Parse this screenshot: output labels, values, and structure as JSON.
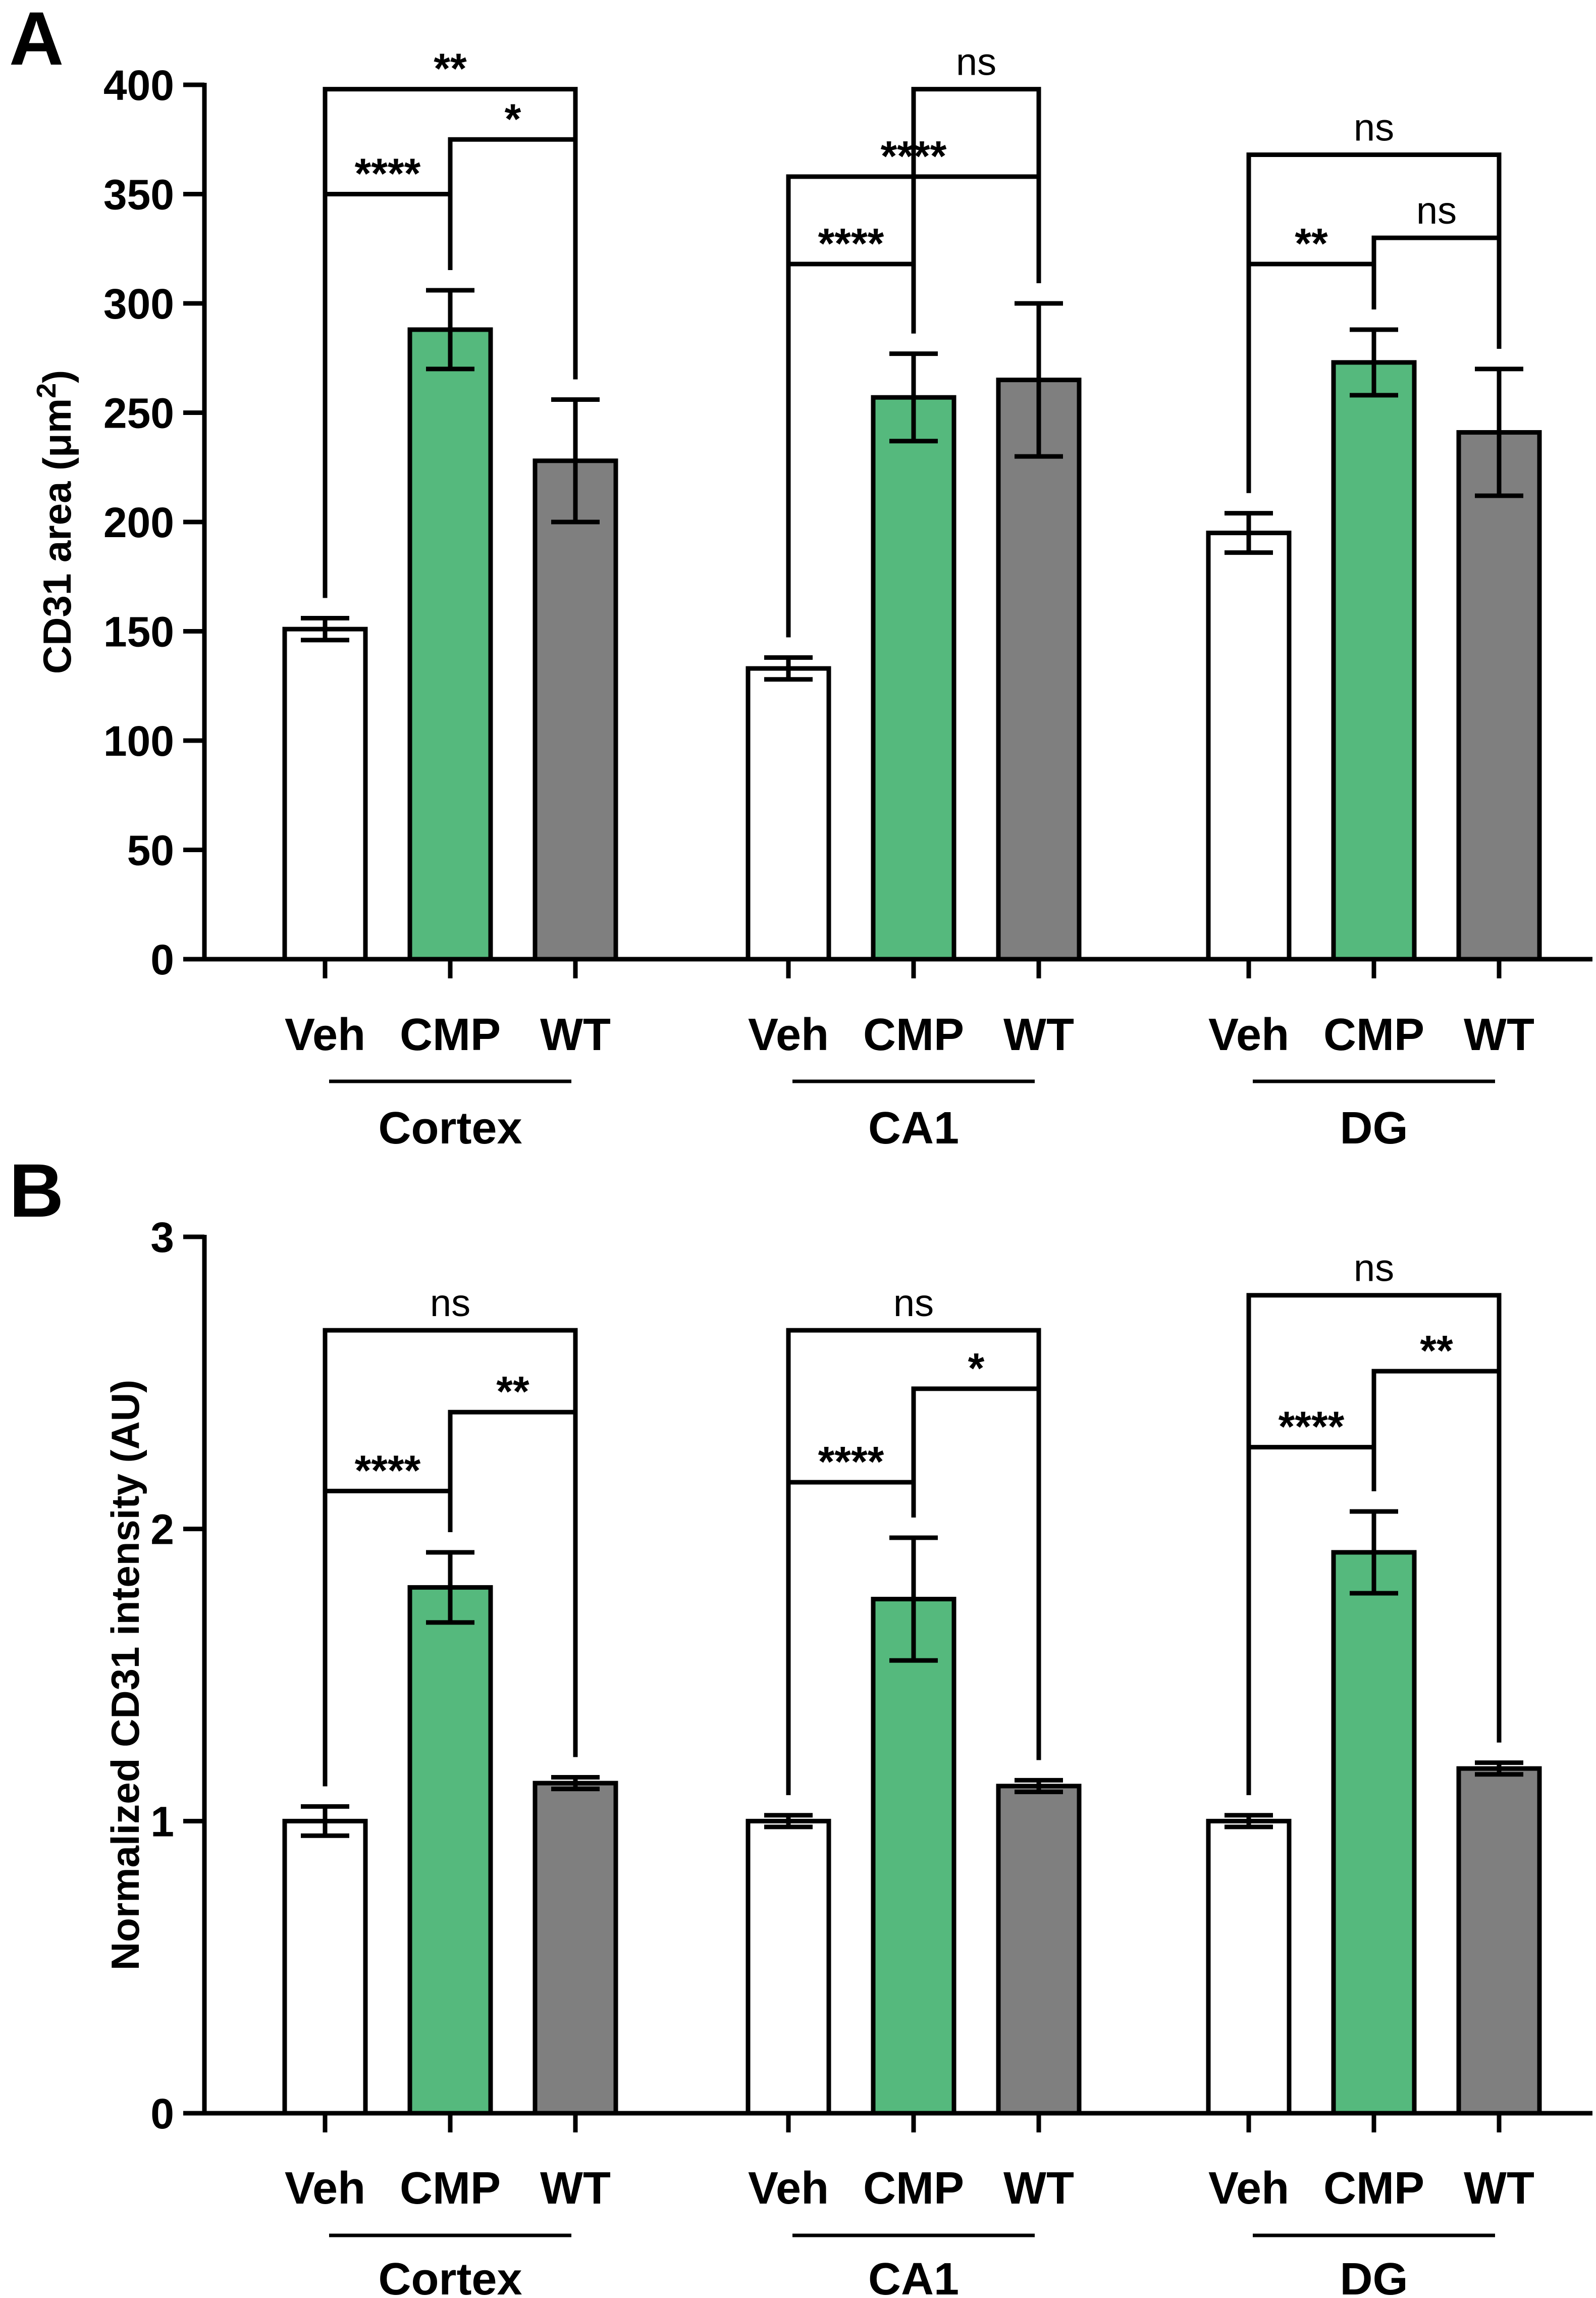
{
  "chart_data": [
    {
      "panel": "A",
      "type": "bar",
      "ylabel": "CD31 area (μm²)",
      "ylabel_base": "CD31 area (μm",
      "ylabel_sup": "2",
      "ylabel_close": ")",
      "ylim": [
        0,
        400
      ],
      "yticks": [
        "0",
        "50",
        "100",
        "150",
        "200",
        "250",
        "300",
        "350",
        "400"
      ],
      "groups": [
        "Cortex",
        "CA1",
        "DG"
      ],
      "categories": [
        "Veh",
        "CMP",
        "WT"
      ],
      "series": [
        {
          "name": "Veh",
          "color": "#ffffff",
          "values": [
            151,
            133,
            195
          ],
          "errors": [
            5,
            5,
            9
          ]
        },
        {
          "name": "CMP",
          "color": "#55b97d",
          "values": [
            288,
            257,
            273
          ],
          "errors": [
            18,
            20,
            15
          ]
        },
        {
          "name": "WT",
          "color": "#7f7f7f",
          "values": [
            228,
            265,
            241
          ],
          "errors": [
            28,
            35,
            29
          ]
        }
      ],
      "significance": [
        {
          "group": 0,
          "from": 0,
          "to": 1,
          "label": "****",
          "y": 350
        },
        {
          "group": 0,
          "from": 1,
          "to": 2,
          "label": "*",
          "y": 375
        },
        {
          "group": 0,
          "from": 0,
          "to": 2,
          "label": "**",
          "y": 398
        },
        {
          "group": 1,
          "from": 0,
          "to": 1,
          "label": "****",
          "y": 318
        },
        {
          "group": 1,
          "from": 0,
          "to": 2,
          "label": "****",
          "y": 358
        },
        {
          "group": 1,
          "from": 1,
          "to": 2,
          "label": "ns",
          "y": 398
        },
        {
          "group": 2,
          "from": 0,
          "to": 1,
          "label": "**",
          "y": 318
        },
        {
          "group": 2,
          "from": 1,
          "to": 2,
          "label": "ns",
          "y": 330
        },
        {
          "group": 2,
          "from": 0,
          "to": 2,
          "label": "ns",
          "y": 368
        }
      ]
    },
    {
      "panel": "B",
      "type": "bar",
      "ylabel": "Normalized CD31 intensity (AU)",
      "ylim": [
        0,
        3
      ],
      "yticks": [
        "0",
        "1",
        "2",
        "3"
      ],
      "groups": [
        "Cortex",
        "CA1",
        "DG"
      ],
      "categories": [
        "Veh",
        "CMP",
        "WT"
      ],
      "series": [
        {
          "name": "Veh",
          "color": "#ffffff",
          "values": [
            1.0,
            1.0,
            1.0
          ],
          "errors": [
            0.05,
            0.02,
            0.02
          ]
        },
        {
          "name": "CMP",
          "color": "#55b97d",
          "values": [
            1.8,
            1.76,
            1.92
          ],
          "errors": [
            0.12,
            0.21,
            0.14
          ]
        },
        {
          "name": "WT",
          "color": "#7f7f7f",
          "values": [
            1.13,
            1.12,
            1.18
          ],
          "errors": [
            0.02,
            0.02,
            0.02
          ]
        }
      ],
      "significance": [
        {
          "group": 0,
          "from": 0,
          "to": 1,
          "label": "****",
          "y": 2.13
        },
        {
          "group": 0,
          "from": 1,
          "to": 2,
          "label": "**",
          "y": 2.4
        },
        {
          "group": 0,
          "from": 0,
          "to": 2,
          "label": "ns",
          "y": 2.68
        },
        {
          "group": 1,
          "from": 0,
          "to": 1,
          "label": "****",
          "y": 2.16
        },
        {
          "group": 1,
          "from": 1,
          "to": 2,
          "label": "*",
          "y": 2.48
        },
        {
          "group": 1,
          "from": 0,
          "to": 2,
          "label": "ns",
          "y": 2.68
        },
        {
          "group": 2,
          "from": 0,
          "to": 1,
          "label": "****",
          "y": 2.28
        },
        {
          "group": 2,
          "from": 1,
          "to": 2,
          "label": "**",
          "y": 2.54
        },
        {
          "group": 2,
          "from": 0,
          "to": 2,
          "label": "ns",
          "y": 2.8
        }
      ]
    }
  ]
}
